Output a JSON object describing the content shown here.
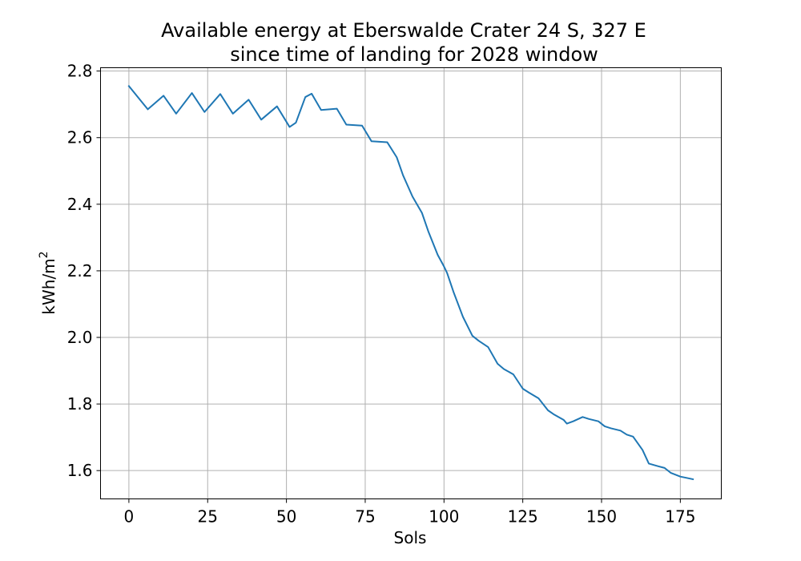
{
  "chart_data": {
    "type": "line",
    "title_lines": [
      "Available energy at Eberswalde Crater 24 S, 327 E",
      "since time of landing for 2028 window"
    ],
    "xlabel": "Sols",
    "ylabel": "kWh/m",
    "ylabel_superscript": "2",
    "xlim": [
      -9,
      188
    ],
    "ylim": [
      1.515,
      2.81
    ],
    "x_ticks": [
      0,
      25,
      50,
      75,
      100,
      125,
      150,
      175
    ],
    "x_tick_labels": [
      "0",
      "25",
      "50",
      "75",
      "100",
      "125",
      "150",
      "175"
    ],
    "y_ticks": [
      1.6,
      1.8,
      2.0,
      2.2,
      2.4,
      2.6,
      2.8
    ],
    "y_tick_labels": [
      "1.6",
      "1.8",
      "2.0",
      "2.2",
      "2.4",
      "2.6",
      "2.8"
    ],
    "grid": true,
    "series": [
      {
        "color": "#1f77b4",
        "x": [
          0,
          6,
          11,
          15,
          20,
          24,
          29,
          33,
          38,
          42,
          47,
          51,
          53,
          56,
          58,
          61,
          66,
          69,
          74,
          77,
          82,
          85,
          87,
          90,
          93,
          95,
          98,
          100,
          101,
          103,
          106,
          109,
          111,
          114,
          117,
          119,
          122,
          125,
          127,
          130,
          133,
          135,
          138,
          139,
          141,
          144,
          146,
          149,
          151,
          153,
          156,
          158,
          160,
          163,
          165,
          168,
          170,
          172,
          175,
          177,
          179
        ],
        "y": [
          2.755,
          2.685,
          2.726,
          2.672,
          2.734,
          2.677,
          2.731,
          2.672,
          2.714,
          2.654,
          2.694,
          2.632,
          2.645,
          2.722,
          2.732,
          2.683,
          2.687,
          2.639,
          2.636,
          2.589,
          2.586,
          2.541,
          2.487,
          2.423,
          2.374,
          2.319,
          2.248,
          2.213,
          2.193,
          2.137,
          2.062,
          2.005,
          1.99,
          1.971,
          1.921,
          1.905,
          1.889,
          1.846,
          1.834,
          1.817,
          1.781,
          1.768,
          1.752,
          1.741,
          1.748,
          1.761,
          1.755,
          1.748,
          1.733,
          1.727,
          1.72,
          1.708,
          1.702,
          1.662,
          1.621,
          1.613,
          1.608,
          1.593,
          1.582,
          1.578,
          1.574
        ]
      }
    ]
  }
}
